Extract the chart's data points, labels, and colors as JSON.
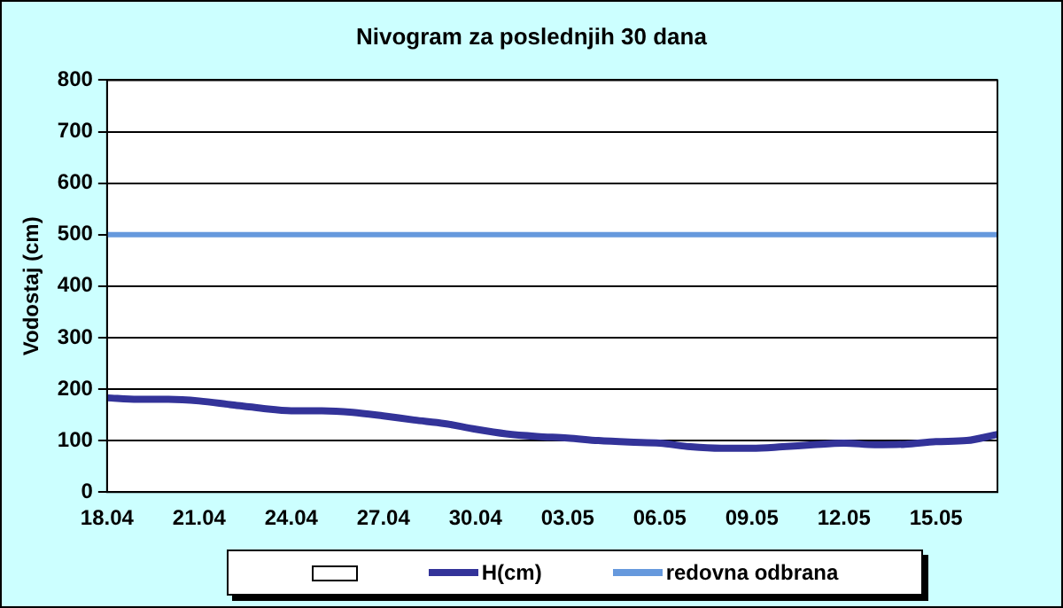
{
  "chart_data": {
    "type": "line",
    "title": "Nivogram za poslednjih 30 dana",
    "ylabel": "Vodostaj (cm)",
    "categories": [
      "18.04",
      null,
      null,
      "21.04",
      null,
      null,
      "24.04",
      null,
      null,
      "27.04",
      null,
      null,
      "30.04",
      null,
      null,
      "03.05",
      null,
      null,
      "06.05",
      null,
      null,
      "09.05",
      null,
      null,
      "12.05",
      null,
      null,
      "15.05",
      null,
      null
    ],
    "series": [
      {
        "name": "H(cm)",
        "color": "#333399",
        "values": [
          183,
          180,
          180,
          177,
          170,
          163,
          158,
          158,
          155,
          148,
          140,
          133,
          122,
          113,
          108,
          105,
          100,
          97,
          95,
          88,
          85,
          85,
          88,
          92,
          95,
          92,
          93,
          98,
          100,
          112
        ]
      }
    ],
    "ref_lines": [
      {
        "axis": "y",
        "value": 500,
        "label": "redovna odbrana",
        "color": "#6699dd"
      }
    ],
    "ylim": [
      0,
      800
    ],
    "yticks": [
      0,
      100,
      200,
      300,
      400,
      500,
      600,
      700,
      800
    ],
    "grid": "y",
    "legend": "bottom",
    "marker": "none",
    "line_style": "solid"
  }
}
